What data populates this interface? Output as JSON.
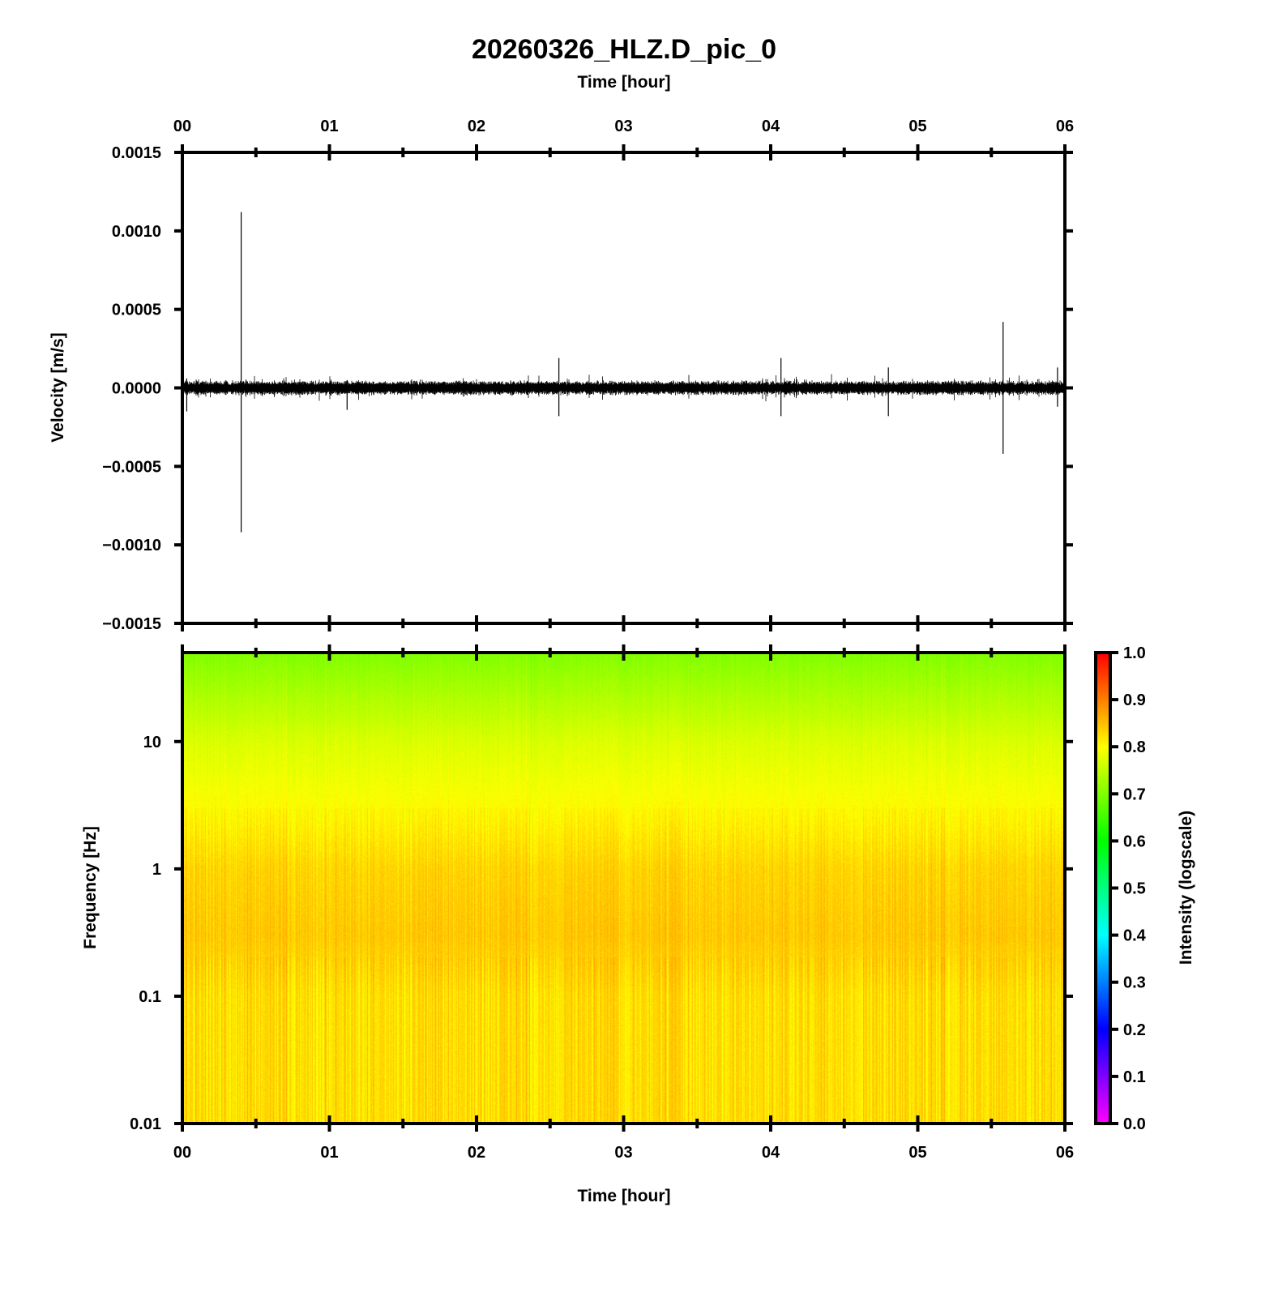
{
  "chart_data": [
    {
      "type": "line",
      "title": "20260326_HLZ.D_pic_0",
      "xlabel": "Time [hour]",
      "ylabel": "Velocity [m/s]",
      "xlim": [
        0,
        6
      ],
      "ylim": [
        -0.0015,
        0.0015
      ],
      "x_ticks": [
        "00",
        "01",
        "02",
        "03",
        "04",
        "05",
        "06"
      ],
      "y_ticks": [
        {
          "v": 0.0015,
          "label": "0.0015"
        },
        {
          "v": 0.001,
          "label": "0.0010"
        },
        {
          "v": 0.0005,
          "label": "0.0005"
        },
        {
          "v": 0.0,
          "label": "0.0000"
        },
        {
          "v": -0.0005,
          "label": "−0.0005"
        },
        {
          "v": -0.001,
          "label": "−0.0010"
        },
        {
          "v": -0.0015,
          "label": "−0.0015"
        }
      ],
      "noise_amplitude": 5e-05,
      "spikes": [
        {
          "t": 0.4,
          "max": 0.00112,
          "min": -0.00092
        },
        {
          "t": 0.03,
          "max": 6e-05,
          "min": -0.00015
        },
        {
          "t": 1.12,
          "max": 5e-05,
          "min": -0.00014
        },
        {
          "t": 2.56,
          "max": 0.00019,
          "min": -0.00018
        },
        {
          "t": 4.07,
          "max": 0.00019,
          "min": -0.00018
        },
        {
          "t": 4.8,
          "max": 0.00013,
          "min": -0.00018
        },
        {
          "t": 5.58,
          "max": 0.00042,
          "min": -0.00042
        },
        {
          "t": 5.95,
          "max": 0.00013,
          "min": -0.00012
        }
      ]
    },
    {
      "type": "heatmap",
      "xlabel": "Time [hour]",
      "ylabel": "Frequency [Hz]",
      "xlim": [
        0,
        6
      ],
      "ylim": [
        0.01,
        50
      ],
      "yscale": "log",
      "x_ticks": [
        "00",
        "01",
        "02",
        "03",
        "04",
        "05",
        "06"
      ],
      "y_ticks": [
        {
          "v": 10,
          "label": "10"
        },
        {
          "v": 1,
          "label": "1"
        },
        {
          "v": 0.1,
          "label": "0.1"
        },
        {
          "v": 0.01,
          "label": "0.01"
        }
      ],
      "intensity_profile": [
        {
          "f": 50,
          "v": 0.7
        },
        {
          "f": 20,
          "v": 0.74
        },
        {
          "f": 10,
          "v": 0.77
        },
        {
          "f": 3,
          "v": 0.8
        },
        {
          "f": 1,
          "v": 0.83
        },
        {
          "f": 0.3,
          "v": 0.84
        },
        {
          "f": 0.1,
          "v": 0.82
        },
        {
          "f": 0.01,
          "v": 0.82
        }
      ],
      "colorbar": {
        "label": "Intensity (logscale)",
        "range": [
          0,
          1
        ],
        "ticks": [
          "0.0",
          "0.1",
          "0.2",
          "0.3",
          "0.4",
          "0.5",
          "0.6",
          "0.7",
          "0.8",
          "0.9",
          "1.0"
        ],
        "colors": [
          "#ff00ff",
          "#0000ff",
          "#00ffff",
          "#00ff00",
          "#ffff00",
          "#ff0000"
        ]
      }
    }
  ],
  "labels": {
    "title": "20260326_HLZ.D_pic_0",
    "top_xlabel": "Time [hour]",
    "bottom_xlabel": "Time [hour]",
    "vel_ylabel": "Velocity [m/s]",
    "freq_ylabel": "Frequency [Hz]",
    "cbar_label": "Intensity (logscale)"
  }
}
